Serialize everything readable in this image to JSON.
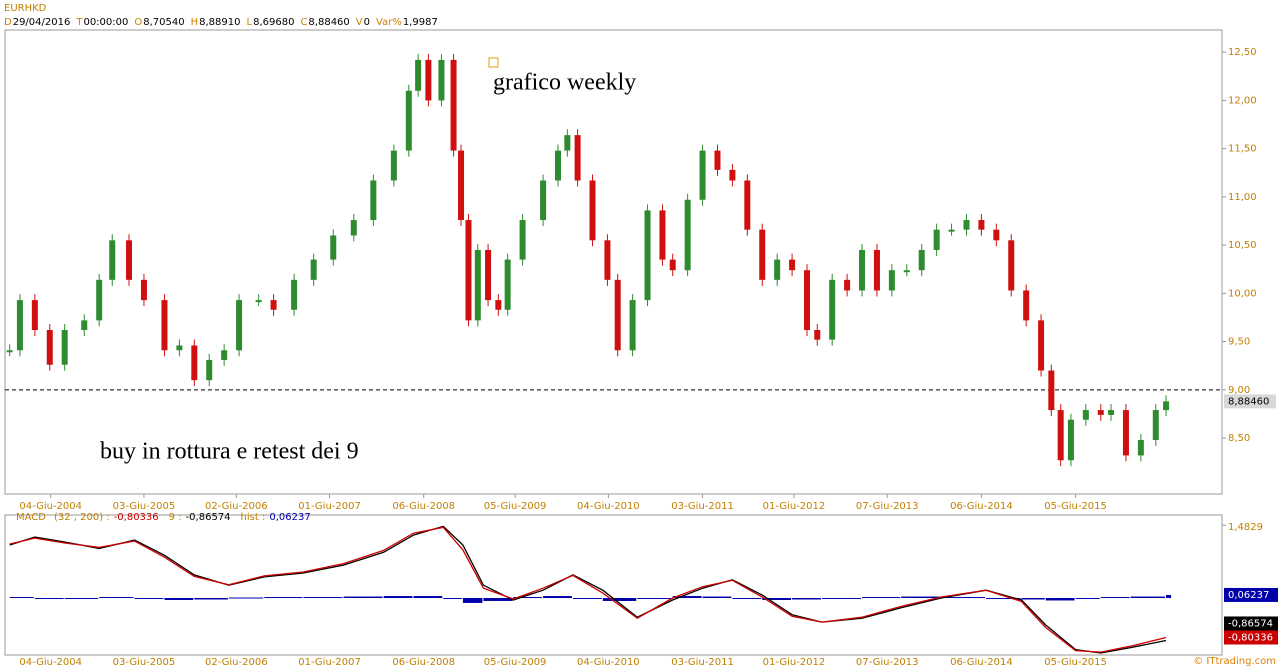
{
  "header": {
    "symbol": "EURHKD",
    "fields": [
      {
        "key": "D",
        "value": "29/04/2016"
      },
      {
        "key": "T",
        "value": "00:00:00"
      },
      {
        "key": "O",
        "value": "8,70540"
      },
      {
        "key": "H",
        "value": "8,88910"
      },
      {
        "key": "L",
        "value": "8,69680"
      },
      {
        "key": "C",
        "value": "8,88460"
      },
      {
        "key": "V",
        "value": "0"
      },
      {
        "key": "Var%",
        "value": "1,9987"
      }
    ]
  },
  "chart_data": [
    {
      "type": "candlestick",
      "annotations": [
        "grafico weekly",
        "buy in rottura e retest dei 9"
      ],
      "hline": 9,
      "last_label": "8,88460",
      "xlim": [
        2003.93,
        2016.98
      ],
      "ylim": [
        7.92,
        12.73
      ],
      "xticks": [
        {
          "value": 2004.42,
          "label": "04-Giu-2004"
        },
        {
          "value": 2005.42,
          "label": "03-Giu-2005"
        },
        {
          "value": 2006.41,
          "label": "02-Giu-2006"
        },
        {
          "value": 2007.41,
          "label": "01-Giu-2007"
        },
        {
          "value": 2008.42,
          "label": "06-Giu-2008"
        },
        {
          "value": 2009.4,
          "label": "05-Giu-2009"
        },
        {
          "value": 2010.4,
          "label": "04-Giu-2010"
        },
        {
          "value": 2011.41,
          "label": "03-Giu-2011"
        },
        {
          "value": 2012.39,
          "label": "01-Giu-2012"
        },
        {
          "value": 2013.39,
          "label": "07-Giu-2013"
        },
        {
          "value": 2014.4,
          "label": "06-Giu-2014"
        },
        {
          "value": 2015.41,
          "label": "05-Giu-2015"
        }
      ],
      "yticks": [
        {
          "value": 8.5,
          "label": "8,50"
        },
        {
          "value": 9,
          "label": "9,00"
        },
        {
          "value": 9.5,
          "label": "9,50"
        },
        {
          "value": 10,
          "label": "10,00"
        },
        {
          "value": 10.5,
          "label": "10,50"
        },
        {
          "value": 11,
          "label": "11,00"
        },
        {
          "value": 11.5,
          "label": "11,50"
        },
        {
          "value": 12,
          "label": "12,00"
        },
        {
          "value": 12.5,
          "label": "12,50"
        }
      ],
      "up_color": "#2e8b2e",
      "down_color": "#d01010",
      "x": [
        2003.98,
        2004.09,
        2004.25,
        2004.41,
        2004.57,
        2004.78,
        2004.94,
        2005.08,
        2005.26,
        2005.42,
        2005.64,
        2005.8,
        2005.96,
        2006.12,
        2006.28,
        2006.44,
        2006.65,
        2006.81,
        2007.03,
        2007.24,
        2007.45,
        2007.67,
        2007.88,
        2008.1,
        2008.26,
        2008.36,
        2008.47,
        2008.61,
        2008.74,
        2008.82,
        2008.9,
        2009.0,
        2009.11,
        2009.22,
        2009.32,
        2009.48,
        2009.7,
        2009.86,
        2009.96,
        2010.07,
        2010.23,
        2010.39,
        2010.5,
        2010.66,
        2010.82,
        2010.98,
        2011.09,
        2011.25,
        2011.41,
        2011.57,
        2011.73,
        2011.89,
        2012.05,
        2012.21,
        2012.37,
        2012.53,
        2012.64,
        2012.8,
        2012.96,
        2013.12,
        2013.28,
        2013.44,
        2013.6,
        2013.76,
        2013.92,
        2014.08,
        2014.24,
        2014.4,
        2014.56,
        2014.72,
        2014.88,
        2015.04,
        2015.15,
        2015.25,
        2015.36,
        2015.52,
        2015.68,
        2015.79,
        2015.95,
        2016.11,
        2016.27,
        2016.38
      ],
      "series": [
        {
          "name": "EURHKD",
          "values": [
            9.41,
            9.93,
            9.62,
            9.26,
            9.62,
            9.72,
            10.14,
            10.55,
            10.14,
            9.93,
            9.41,
            9.46,
            9.1,
            9.31,
            9.41,
            9.93,
            9.93,
            9.83,
            10.14,
            10.35,
            10.6,
            10.76,
            11.17,
            11.48,
            12.1,
            12.42,
            12.0,
            12.42,
            11.48,
            10.76,
            9.72,
            10.45,
            9.93,
            9.83,
            10.35,
            10.76,
            11.17,
            11.48,
            11.64,
            11.17,
            10.55,
            10.14,
            9.41,
            9.93,
            10.86,
            10.35,
            10.24,
            10.97,
            11.48,
            11.28,
            11.17,
            10.66,
            10.14,
            10.35,
            10.24,
            9.62,
            9.52,
            10.14,
            10.03,
            10.45,
            10.03,
            10.24,
            10.24,
            10.45,
            10.66,
            10.66,
            10.76,
            10.66,
            10.55,
            10.03,
            9.72,
            9.2,
            8.79,
            8.27,
            8.69,
            8.79,
            8.74,
            8.79,
            8.32,
            8.48,
            8.79,
            8.88
          ]
        }
      ]
    },
    {
      "type": "macd",
      "name": "MACD",
      "params": "(32 , 200) :",
      "signal_label": "9 :",
      "hist_label": "hist :",
      "xlim": [
        2003.93,
        2016.98
      ],
      "ylim": [
        -1.16,
        1.69
      ],
      "yticks": [
        {
          "value": 1.4829,
          "label": "1,4829"
        }
      ],
      "x": [
        2003.98,
        2004.25,
        2004.57,
        2004.94,
        2005.32,
        2005.64,
        2005.96,
        2006.33,
        2006.71,
        2007.13,
        2007.56,
        2007.99,
        2008.31,
        2008.63,
        2008.84,
        2009.06,
        2009.38,
        2009.7,
        2010.02,
        2010.34,
        2010.71,
        2011.09,
        2011.41,
        2011.73,
        2012.05,
        2012.37,
        2012.69,
        2013.12,
        2013.54,
        2013.97,
        2014.45,
        2014.83,
        2015.09,
        2015.41,
        2015.68,
        2016.0,
        2016.38
      ],
      "series": [
        {
          "name": "macd",
          "color": "#cc0000",
          "value_label": "-0,80336",
          "values": [
            1.1,
            1.22,
            1.12,
            1.03,
            1.16,
            0.83,
            0.44,
            0.27,
            0.45,
            0.53,
            0.7,
            0.97,
            1.32,
            1.44,
            0.98,
            0.2,
            -0.02,
            0.2,
            0.46,
            0.1,
            -0.41,
            0,
            0.23,
            0.36,
            0.02,
            -0.37,
            -0.49,
            -0.39,
            -0.17,
            0.02,
            0.16,
            -0.07,
            -0.6,
            -1.07,
            -1.1,
            -0.98,
            -0.80336
          ]
        },
        {
          "name": "signal",
          "color": "#000000",
          "value_label": "-0,86574",
          "values": [
            1.08,
            1.24,
            1.14,
            1.01,
            1.18,
            0.87,
            0.47,
            0.26,
            0.43,
            0.51,
            0.67,
            0.93,
            1.28,
            1.46,
            1.08,
            0.26,
            -0.04,
            0.16,
            0.47,
            0.16,
            -0.39,
            -0.04,
            0.2,
            0.37,
            0.06,
            -0.34,
            -0.49,
            -0.41,
            -0.2,
            0,
            0.16,
            -0.04,
            -0.55,
            -1.05,
            -1.12,
            -1.01,
            -0.86574
          ]
        },
        {
          "name": "hist",
          "color": "#0000aa",
          "value_label": "0,06237",
          "values": [
            0.02,
            -0.02,
            -0.02,
            0.02,
            -0.02,
            -0.04,
            -0.03,
            0.01,
            0.02,
            0.02,
            0.03,
            0.04,
            0.04,
            -0.02,
            -0.1,
            -0.06,
            0.02,
            0.04,
            -0.01,
            -0.06,
            -0.02,
            0.04,
            0.03,
            -0.01,
            -0.04,
            -0.03,
            0,
            0.02,
            0.03,
            0.02,
            0,
            -0.03,
            -0.05,
            -0.02,
            0.02,
            0.03,
            0.06237
          ]
        }
      ]
    }
  ],
  "footer": "© ITtrading.com"
}
